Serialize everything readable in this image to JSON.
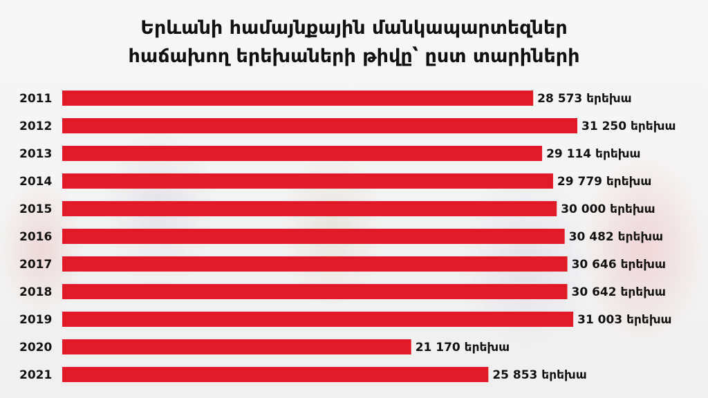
{
  "chart_data": {
    "type": "bar",
    "orientation": "horizontal",
    "title": "Երևանի համայնքային մանկապարտեզներ",
    "subtitle": "հաճախող երեխաների թիվը՝ ըստ տարիների",
    "categories": [
      "2011",
      "2012",
      "2013",
      "2014",
      "2015",
      "2016",
      "2017",
      "2018",
      "2019",
      "2020",
      "2021"
    ],
    "values": [
      28573,
      31250,
      29114,
      29779,
      30000,
      30482,
      30646,
      30642,
      31003,
      21170,
      25853
    ],
    "value_labels": [
      "28 573 երեխա",
      "31 250 երեխա",
      "29 114 երեխա",
      "29 779 երեխա",
      "30 000 երեխա",
      "30 482 երեխա",
      "30 646 երեխա",
      "30 642 երեխա",
      "31 003 երեխա",
      "21 170 երեխա",
      "25 853 երեխա"
    ],
    "bar_color": "#e11a27",
    "xlim": [
      0,
      31250
    ],
    "grid": false,
    "legend": "none"
  }
}
